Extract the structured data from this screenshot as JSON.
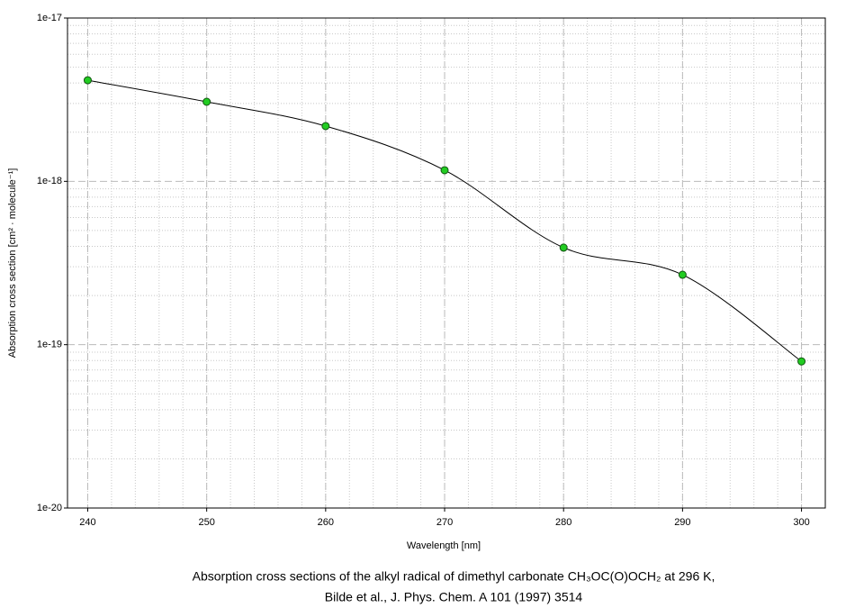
{
  "chart_data": {
    "type": "line",
    "x_label": "Wavelength [nm]",
    "y_label": "Absorption cross section [cm² · molecule⁻¹]",
    "caption_lines": [
      "Absorption cross sections of the alkyl radical of dimethyl carbonate CH₃OC(O)OCH₂ at 296 K,",
      "Bilde et al., J. Phys. Chem. A 101 (1997) 3514"
    ],
    "x": [
      240,
      250,
      260,
      270,
      280,
      290,
      300
    ],
    "series": [
      {
        "color": "#000000",
        "marker_color": "#22cc22",
        "values": [
          4.16e-18,
          3.07e-18,
          2.18e-18,
          1.17e-18,
          3.93e-19,
          2.68e-19,
          7.9e-20
        ]
      }
    ],
    "xlim": [
      238.3,
      302
    ],
    "xticks": [
      240,
      250,
      260,
      270,
      280,
      290,
      300
    ],
    "ylim": [
      1e-20,
      1e-17
    ],
    "yticks": [
      {
        "value": 1e-20,
        "label": "1e-20"
      },
      {
        "value": 1e-19,
        "label": "1e-19"
      },
      {
        "value": 1e-18,
        "label": "1e-18"
      },
      {
        "value": 1e-17,
        "label": "1e-17"
      }
    ],
    "y_log": true,
    "grid": true,
    "minor_grid": true,
    "smooth": true
  }
}
